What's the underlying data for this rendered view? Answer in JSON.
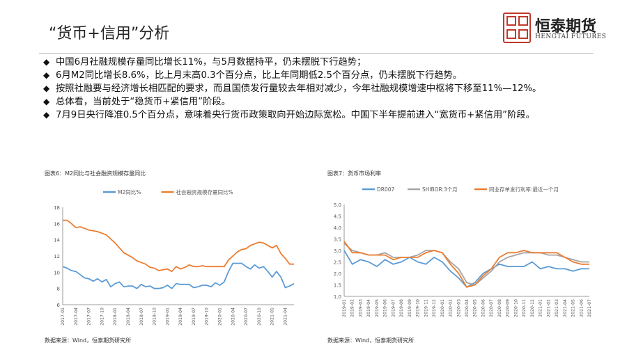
{
  "title": "“货币+信用”分析",
  "logo": {
    "name_cn": "恒泰期货",
    "name_en": "HENGTAI FUTURES"
  },
  "bullets": [
    "中国6月社融规模存量同比增长11%，与5月数据持平，仍未摆脱下行趋势；",
    "6月M2同比增长8.6%，比上月末高0.3个百分点，比上年同期低2.5个百分点，仍未摆脱下行趋势。",
    "按照社融要与经济增长相匹配的要求，而且国债发行量较去年相对减少，今年社融规模增速中枢将下移至11%—12%。",
    "总体看，当前处于“稳货币+紧信用”阶段。",
    "7月9日央行降准0.5个百分点，意味着央行货币政策取向开始边际宽松。中国下半年提前进入“宽货币+紧信用”阶段。"
  ],
  "colors": {
    "blue": "#5b9bd5",
    "orange": "#ed7d31",
    "gray": "#a5a5a5",
    "axis": "#7f7f7f",
    "grid": "#d9d9d9"
  },
  "chart_data": [
    {
      "type": "line",
      "title": "图表6：M2同比与社会融资规模存量同比",
      "source": "数据来源：Wind，恒泰期货研究所",
      "x": [
        "2017-01",
        "2017-02",
        "2017-03",
        "2017-04",
        "2017-05",
        "2017-06",
        "2017-07",
        "2017-08",
        "2017-09",
        "2017-10",
        "2017-11",
        "2017-12",
        "2018-01",
        "2018-02",
        "2018-03",
        "2018-04",
        "2018-05",
        "2018-06",
        "2018-07",
        "2018-08",
        "2018-09",
        "2018-10",
        "2018-11",
        "2018-12",
        "2019-01",
        "2019-02",
        "2019-03",
        "2019-04",
        "2019-05",
        "2019-06",
        "2019-07",
        "2019-08",
        "2019-09",
        "2019-10",
        "2019-11",
        "2019-12",
        "2020-01",
        "2020-02",
        "2020-03",
        "2020-04",
        "2020-05",
        "2020-06",
        "2020-07",
        "2020-08",
        "2020-09",
        "2020-10",
        "2020-11",
        "2020-12",
        "2021-01",
        "2021-02",
        "2021-03",
        "2021-04",
        "2021-05",
        "2021-06"
      ],
      "x_tick_labels": [
        "2017-01",
        "2017-04",
        "2017-07",
        "2017-10",
        "2018-01",
        "2018-04",
        "2018-07",
        "2018-10",
        "2019-01",
        "2019-04",
        "2019-07",
        "2019-10",
        "2020-01",
        "2020-04",
        "2020-07",
        "2020-10",
        "2021-01",
        "2021-04"
      ],
      "series": [
        {
          "name": "M2同比%",
          "color": "#5b9bd5",
          "values": [
            10.7,
            10.5,
            10.2,
            10.1,
            9.7,
            9.3,
            9.2,
            8.9,
            9.2,
            8.8,
            9.1,
            8.2,
            8.6,
            8.8,
            8.2,
            8.3,
            8.3,
            8.0,
            8.5,
            8.2,
            8.3,
            8.0,
            8.0,
            8.1,
            8.4,
            8.0,
            8.6,
            8.5,
            8.5,
            8.5,
            8.1,
            8.2,
            8.4,
            8.4,
            8.2,
            8.7,
            8.4,
            8.8,
            10.1,
            11.1,
            11.1,
            11.1,
            10.7,
            10.4,
            10.9,
            10.5,
            10.7,
            10.1,
            9.4,
            10.1,
            9.4,
            8.1,
            8.3,
            8.6
          ]
        },
        {
          "name": "社会融资规模存量同比%",
          "color": "#ed7d31",
          "values": [
            16.4,
            16.4,
            16.0,
            15.5,
            15.6,
            15.4,
            15.2,
            15.1,
            15.0,
            14.8,
            14.6,
            14.1,
            13.6,
            13.0,
            12.4,
            12.1,
            11.8,
            11.4,
            11.2,
            11.0,
            10.6,
            10.5,
            10.2,
            10.3,
            10.4,
            10.1,
            10.7,
            10.4,
            10.6,
            10.9,
            10.7,
            10.7,
            10.8,
            10.7,
            10.7,
            10.7,
            10.7,
            10.7,
            11.5,
            12.0,
            12.5,
            12.8,
            12.9,
            13.3,
            13.5,
            13.7,
            13.6,
            13.3,
            13.0,
            13.3,
            12.3,
            11.7,
            11.0,
            11.0
          ]
        }
      ],
      "y_ticks": [
        "18",
        "16",
        "14",
        "12",
        "10",
        "8",
        "6"
      ],
      "ylim": [
        6,
        18
      ],
      "legend": "top",
      "grid": false
    },
    {
      "type": "line",
      "title": "图表7：货币市场利率",
      "source": "数据来源：Wind，恒泰期货研究所",
      "x_tick_labels": [
        "2019-01",
        "2019-02",
        "2019-03",
        "2019-04",
        "2019-05",
        "2019-06",
        "2019-07",
        "2019-08",
        "2019-09",
        "2019-10",
        "2019-11",
        "2019-12",
        "2020-01",
        "2020-02",
        "2020-03",
        "2020-04",
        "2020-05",
        "2020-06",
        "2020-07",
        "2020-08",
        "2020-09",
        "2020-10",
        "2020-11",
        "2020-12",
        "2021-01",
        "2021-02",
        "2021-03",
        "2021-04",
        "2021-05",
        "2021-06",
        "2021-07"
      ],
      "series": [
        {
          "name": "DR007",
          "color": "#5b9bd5",
          "values": [
            3.0,
            2.4,
            2.6,
            2.5,
            2.3,
            2.6,
            2.4,
            2.5,
            2.7,
            2.5,
            2.4,
            2.7,
            2.5,
            2.1,
            1.8,
            1.4,
            1.6,
            2.0,
            2.2,
            2.4,
            2.3,
            2.3,
            2.3,
            2.5,
            2.2,
            2.3,
            2.2,
            2.2,
            2.1,
            2.2,
            2.2
          ]
        },
        {
          "name": "SHIBOR:3个月",
          "color": "#a5a5a5",
          "values": [
            3.3,
            3.0,
            2.9,
            2.8,
            2.8,
            2.9,
            2.7,
            2.7,
            2.7,
            2.8,
            3.0,
            3.0,
            2.9,
            2.5,
            2.2,
            1.6,
            1.5,
            1.8,
            2.1,
            2.5,
            2.7,
            2.8,
            2.9,
            2.9,
            2.9,
            2.8,
            2.8,
            2.7,
            2.6,
            2.5,
            2.5
          ]
        },
        {
          "name": "同业存单发行利率:最近一个月",
          "color": "#ed7d31",
          "values": [
            3.4,
            2.9,
            2.9,
            2.8,
            2.8,
            2.8,
            2.6,
            2.7,
            2.7,
            2.7,
            2.9,
            3.0,
            2.9,
            2.4,
            2.0,
            1.4,
            1.5,
            1.9,
            2.2,
            2.7,
            2.9,
            2.9,
            3.0,
            2.9,
            2.9,
            2.9,
            2.9,
            2.7,
            2.5,
            2.4,
            2.4
          ]
        }
      ],
      "y_ticks": [
        "5.0",
        "4.5",
        "4.0",
        "3.5",
        "3.0",
        "2.5",
        "2.0",
        "1.5",
        "1.0"
      ],
      "ylim": [
        1.0,
        5.0
      ],
      "legend": "top",
      "grid": false
    }
  ]
}
